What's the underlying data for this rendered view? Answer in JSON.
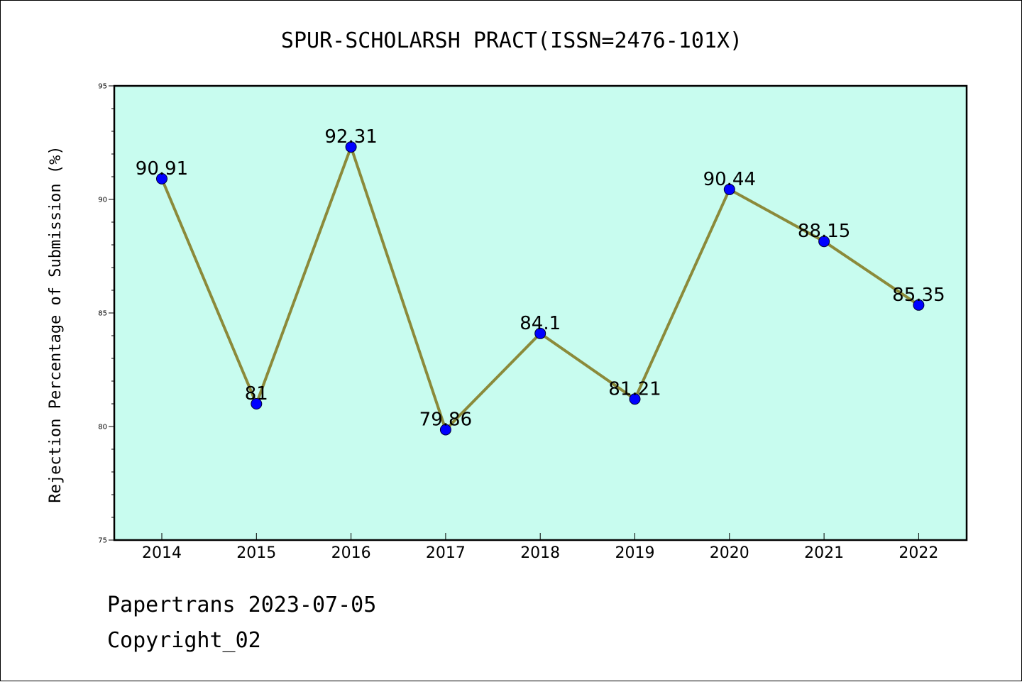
{
  "footer": {
    "line1": "Papertrans 2023-07-05",
    "line2": "Copyright_02"
  },
  "chart_data": {
    "type": "line",
    "title": "SPUR-SCHOLARSH PRACT(ISSN=2476-101X)",
    "xlabel": "",
    "ylabel": "Rejection Percentage of Submission (%)",
    "categories": [
      "2014",
      "2015",
      "2016",
      "2017",
      "2018",
      "2019",
      "2020",
      "2021",
      "2022"
    ],
    "series": [
      {
        "values": [
          90.91,
          81,
          92.31,
          79.86,
          84.1,
          81.21,
          90.44,
          88.15,
          85.35
        ],
        "labels": [
          "90.91",
          "81",
          "92.31",
          "79.86",
          "84.1",
          "81.21",
          "90.44",
          "88.15",
          "85.35"
        ]
      }
    ],
    "ylim": [
      75,
      95
    ],
    "yticks": [
      75,
      80,
      85,
      90,
      95
    ],
    "grid": false,
    "colors": {
      "plot_background": "#c8fcef",
      "line": "#8b8a3a",
      "marker": "#0000ff"
    }
  }
}
